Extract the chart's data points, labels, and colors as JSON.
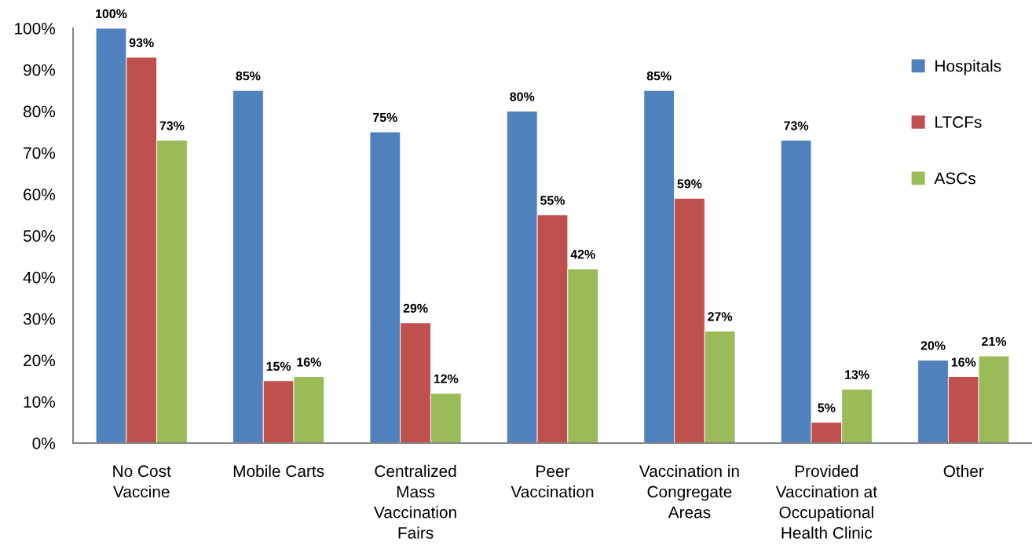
{
  "chart_data": {
    "type": "bar",
    "categories": [
      "No Cost\nVaccine",
      "Mobile Carts",
      "Centralized\nMass\nVaccination\nFairs",
      "Peer\nVaccination",
      "Vaccination in\nCongregate\nAreas",
      "Provided\nVaccination at\nOccupational\nHealth Clinic",
      "Other"
    ],
    "series": [
      {
        "name": "Hospitals",
        "color": "#4f81bd",
        "values": [
          100,
          85,
          75,
          80,
          85,
          73,
          20
        ],
        "value_labels": [
          "100%",
          "85%",
          "75%",
          "80%",
          "85%",
          "73%",
          "20%"
        ]
      },
      {
        "name": "LTCFs",
        "color": "#c0504d",
        "values": [
          93,
          15,
          29,
          55,
          59,
          5,
          16
        ],
        "value_labels": [
          "93%",
          "15%",
          "29%",
          "55%",
          "59%",
          "5%",
          "16%"
        ]
      },
      {
        "name": "ASCs",
        "color": "#9bbb59",
        "values": [
          73,
          16,
          12,
          42,
          27,
          13,
          21
        ],
        "value_labels": [
          "73%",
          "16%",
          "12%",
          "42%",
          "27%",
          "13%",
          "21%"
        ]
      }
    ],
    "ylim": [
      0,
      100
    ],
    "yticks": [
      {
        "value": 0,
        "label": "0%"
      },
      {
        "value": 10,
        "label": "10%"
      },
      {
        "value": 20,
        "label": "20%"
      },
      {
        "value": 30,
        "label": "30%"
      },
      {
        "value": 40,
        "label": "40%"
      },
      {
        "value": 50,
        "label": "50%"
      },
      {
        "value": 60,
        "label": "60%"
      },
      {
        "value": 70,
        "label": "70%"
      },
      {
        "value": 80,
        "label": "80%"
      },
      {
        "value": 90,
        "label": "90%"
      },
      {
        "value": 100,
        "label": "100%"
      }
    ],
    "legend": "top right"
  }
}
